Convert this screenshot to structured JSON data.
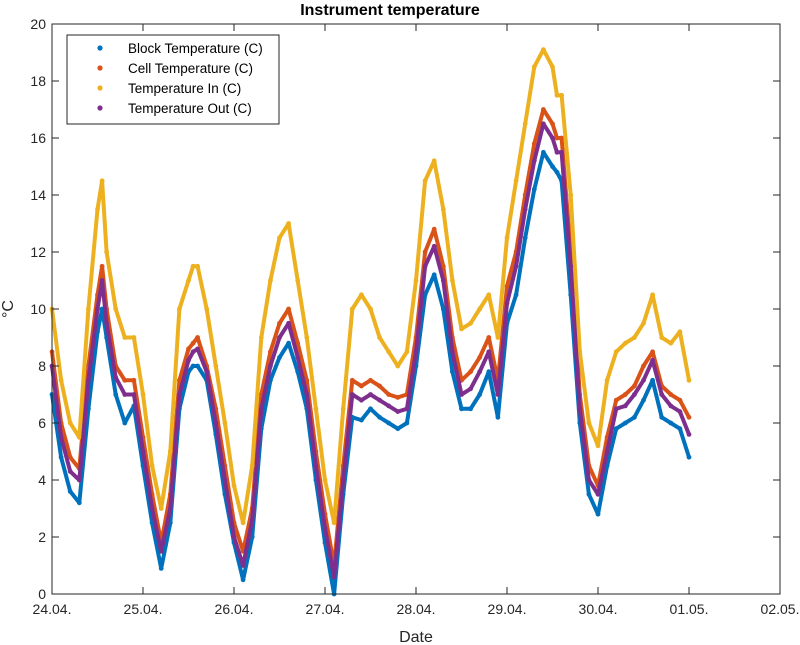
{
  "chart_data": {
    "type": "scatter",
    "title": "Instrument temperature",
    "xlabel": "Date",
    "ylabel": "°C",
    "xlim_days": [
      0,
      8
    ],
    "ylim": [
      0,
      20
    ],
    "x_ticks": [
      "24.04.",
      "25.04.",
      "26.04.",
      "27.04.",
      "28.04.",
      "29.04.",
      "30.04.",
      "01.05.",
      "02.05."
    ],
    "y_ticks": [
      0,
      2,
      4,
      6,
      8,
      10,
      12,
      14,
      16,
      18,
      20
    ],
    "grid": false,
    "legend_position": "top-left",
    "series": [
      {
        "name": "Block Temperature (C)",
        "color": "#0072BD",
        "x": [
          0.0,
          0.1,
          0.2,
          0.3,
          0.4,
          0.5,
          0.55,
          0.6,
          0.7,
          0.8,
          0.9,
          1.0,
          1.1,
          1.2,
          1.3,
          1.4,
          1.5,
          1.55,
          1.6,
          1.7,
          1.8,
          1.9,
          2.0,
          2.1,
          2.2,
          2.3,
          2.4,
          2.5,
          2.6,
          2.7,
          2.8,
          2.9,
          3.0,
          3.1,
          3.2,
          3.3,
          3.4,
          3.5,
          3.6,
          3.7,
          3.8,
          3.9,
          4.0,
          4.1,
          4.2,
          4.3,
          4.4,
          4.5,
          4.6,
          4.7,
          4.8,
          4.9,
          5.0,
          5.1,
          5.2,
          5.3,
          5.4,
          5.5,
          5.55,
          5.6,
          5.7,
          5.8,
          5.9,
          6.0,
          6.1,
          6.2,
          6.3,
          6.4,
          6.5,
          6.6,
          6.7,
          6.8,
          6.9,
          7.0
        ],
        "y": [
          7.0,
          4.8,
          3.6,
          3.2,
          6.5,
          9.2,
          10.0,
          9.0,
          7.0,
          6.0,
          6.6,
          4.5,
          2.5,
          0.9,
          2.5,
          6.5,
          7.8,
          8.0,
          8.0,
          7.5,
          5.6,
          3.5,
          1.8,
          0.5,
          2.0,
          5.8,
          7.5,
          8.3,
          8.8,
          7.8,
          6.5,
          4.0,
          1.8,
          0.0,
          3.5,
          6.2,
          6.1,
          6.5,
          6.2,
          6.0,
          5.8,
          6.0,
          8.0,
          10.5,
          11.2,
          10.0,
          7.8,
          6.5,
          6.5,
          7.0,
          7.8,
          6.2,
          9.5,
          10.5,
          12.5,
          14.2,
          15.5,
          15.0,
          14.8,
          14.5,
          10.5,
          6.0,
          3.5,
          2.8,
          4.5,
          5.8,
          6.0,
          6.2,
          6.8,
          7.5,
          6.2,
          6.0,
          5.8,
          4.8
        ]
      },
      {
        "name": "Cell Temperature (C)",
        "color": "#D95319",
        "x": [
          0.0,
          0.1,
          0.2,
          0.3,
          0.4,
          0.5,
          0.55,
          0.6,
          0.7,
          0.8,
          0.9,
          1.0,
          1.1,
          1.2,
          1.3,
          1.4,
          1.5,
          1.55,
          1.6,
          1.7,
          1.8,
          1.9,
          2.0,
          2.1,
          2.2,
          2.3,
          2.4,
          2.5,
          2.6,
          2.7,
          2.8,
          2.9,
          3.0,
          3.1,
          3.2,
          3.3,
          3.4,
          3.5,
          3.6,
          3.7,
          3.8,
          3.9,
          4.0,
          4.1,
          4.2,
          4.3,
          4.4,
          4.5,
          4.6,
          4.7,
          4.8,
          4.9,
          5.0,
          5.1,
          5.2,
          5.3,
          5.4,
          5.5,
          5.55,
          5.6,
          5.7,
          5.8,
          5.9,
          6.0,
          6.1,
          6.2,
          6.3,
          6.4,
          6.5,
          6.6,
          6.7,
          6.8,
          6.9,
          7.0
        ],
        "y": [
          8.5,
          6.0,
          4.8,
          4.4,
          8.0,
          10.5,
          11.5,
          10.0,
          8.0,
          7.5,
          7.5,
          5.5,
          3.5,
          1.8,
          3.5,
          7.5,
          8.6,
          8.8,
          9.0,
          8.0,
          6.5,
          4.5,
          2.5,
          1.5,
          3.0,
          7.0,
          8.5,
          9.5,
          10.0,
          8.8,
          7.5,
          5.0,
          2.8,
          1.0,
          4.5,
          7.5,
          7.3,
          7.5,
          7.3,
          7.0,
          6.9,
          7.0,
          9.0,
          12.0,
          12.8,
          11.5,
          9.0,
          7.5,
          7.8,
          8.3,
          9.0,
          7.5,
          10.8,
          12.0,
          14.0,
          15.8,
          17.0,
          16.5,
          16.0,
          16.0,
          12.0,
          7.0,
          4.5,
          3.8,
          5.5,
          6.8,
          7.0,
          7.3,
          8.0,
          8.5,
          7.3,
          7.0,
          6.8,
          6.2
        ]
      },
      {
        "name": "Temperature In (C)",
        "color": "#EDB120",
        "x": [
          0.0,
          0.1,
          0.2,
          0.3,
          0.4,
          0.5,
          0.55,
          0.6,
          0.7,
          0.8,
          0.9,
          1.0,
          1.1,
          1.2,
          1.3,
          1.4,
          1.5,
          1.55,
          1.6,
          1.7,
          1.8,
          1.9,
          2.0,
          2.1,
          2.2,
          2.3,
          2.4,
          2.5,
          2.6,
          2.7,
          2.8,
          2.9,
          3.0,
          3.1,
          3.2,
          3.3,
          3.4,
          3.5,
          3.6,
          3.7,
          3.8,
          3.9,
          4.0,
          4.1,
          4.2,
          4.3,
          4.4,
          4.5,
          4.6,
          4.7,
          4.8,
          4.9,
          5.0,
          5.1,
          5.2,
          5.3,
          5.4,
          5.5,
          5.55,
          5.6,
          5.7,
          5.8,
          5.9,
          6.0,
          6.1,
          6.2,
          6.3,
          6.4,
          6.5,
          6.6,
          6.7,
          6.8,
          6.9,
          7.0
        ],
        "y": [
          10.0,
          7.5,
          6.0,
          5.5,
          10.0,
          13.5,
          14.5,
          12.0,
          10.0,
          9.0,
          9.0,
          7.0,
          4.5,
          3.0,
          5.0,
          10.0,
          11.0,
          11.5,
          11.5,
          10.0,
          8.0,
          6.0,
          3.8,
          2.5,
          4.5,
          9.0,
          11.0,
          12.5,
          13.0,
          11.0,
          9.0,
          6.5,
          4.0,
          2.5,
          6.5,
          10.0,
          10.5,
          10.0,
          9.0,
          8.5,
          8.0,
          8.5,
          11.0,
          14.5,
          15.2,
          13.5,
          11.0,
          9.3,
          9.5,
          10.0,
          10.5,
          9.0,
          12.5,
          14.5,
          16.5,
          18.5,
          19.1,
          18.5,
          17.5,
          17.5,
          14.0,
          8.5,
          6.0,
          5.2,
          7.5,
          8.5,
          8.8,
          9.0,
          9.5,
          10.5,
          9.0,
          8.8,
          9.2,
          7.5
        ]
      },
      {
        "name": "Temperature Out (C)",
        "color": "#7E2F8E",
        "x": [
          0.0,
          0.1,
          0.2,
          0.3,
          0.4,
          0.5,
          0.55,
          0.6,
          0.7,
          0.8,
          0.9,
          1.0,
          1.1,
          1.2,
          1.3,
          1.4,
          1.5,
          1.55,
          1.6,
          1.7,
          1.8,
          1.9,
          2.0,
          2.1,
          2.2,
          2.3,
          2.4,
          2.5,
          2.6,
          2.7,
          2.8,
          2.9,
          3.0,
          3.1,
          3.2,
          3.3,
          3.4,
          3.5,
          3.6,
          3.7,
          3.8,
          3.9,
          4.0,
          4.1,
          4.2,
          4.3,
          4.4,
          4.5,
          4.6,
          4.7,
          4.8,
          4.9,
          5.0,
          5.1,
          5.2,
          5.3,
          5.4,
          5.5,
          5.55,
          5.6,
          5.7,
          5.8,
          5.9,
          6.0,
          6.1,
          6.2,
          6.3,
          6.4,
          6.5,
          6.6,
          6.7,
          6.8,
          6.9,
          7.0
        ],
        "y": [
          8.0,
          5.5,
          4.3,
          4.0,
          7.5,
          10.0,
          11.0,
          9.5,
          7.6,
          7.0,
          7.0,
          5.0,
          3.0,
          1.5,
          3.0,
          7.0,
          8.2,
          8.5,
          8.6,
          7.8,
          6.0,
          4.0,
          2.0,
          1.0,
          2.6,
          6.5,
          8.0,
          9.0,
          9.5,
          8.3,
          7.0,
          4.5,
          2.3,
          0.6,
          4.0,
          7.0,
          6.8,
          7.0,
          6.8,
          6.6,
          6.4,
          6.5,
          8.5,
          11.5,
          12.2,
          11.0,
          8.5,
          7.0,
          7.2,
          7.8,
          8.5,
          7.0,
          10.2,
          11.5,
          13.5,
          15.2,
          16.5,
          16.0,
          15.5,
          15.5,
          11.5,
          6.5,
          4.0,
          3.5,
          5.0,
          6.5,
          6.6,
          7.0,
          7.5,
          8.2,
          7.0,
          6.6,
          6.4,
          5.6
        ]
      }
    ]
  }
}
